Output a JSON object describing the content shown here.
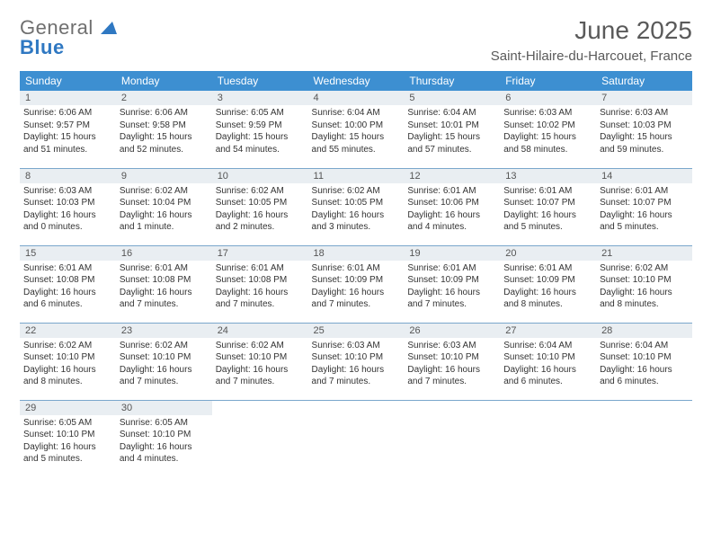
{
  "logo": {
    "word1": "General",
    "word2": "Blue"
  },
  "title": "June 2025",
  "location": "Saint-Hilaire-du-Harcouet, France",
  "header_bg": "#3d8fd1",
  "daynum_bg": "#e9eef2",
  "rule_color": "#7aa7cc",
  "weekdays": [
    "Sunday",
    "Monday",
    "Tuesday",
    "Wednesday",
    "Thursday",
    "Friday",
    "Saturday"
  ],
  "days": [
    {
      "n": "1",
      "sr": "6:06 AM",
      "ss": "9:57 PM",
      "dl": "15 hours and 51 minutes."
    },
    {
      "n": "2",
      "sr": "6:06 AM",
      "ss": "9:58 PM",
      "dl": "15 hours and 52 minutes."
    },
    {
      "n": "3",
      "sr": "6:05 AM",
      "ss": "9:59 PM",
      "dl": "15 hours and 54 minutes."
    },
    {
      "n": "4",
      "sr": "6:04 AM",
      "ss": "10:00 PM",
      "dl": "15 hours and 55 minutes."
    },
    {
      "n": "5",
      "sr": "6:04 AM",
      "ss": "10:01 PM",
      "dl": "15 hours and 57 minutes."
    },
    {
      "n": "6",
      "sr": "6:03 AM",
      "ss": "10:02 PM",
      "dl": "15 hours and 58 minutes."
    },
    {
      "n": "7",
      "sr": "6:03 AM",
      "ss": "10:03 PM",
      "dl": "15 hours and 59 minutes."
    },
    {
      "n": "8",
      "sr": "6:03 AM",
      "ss": "10:03 PM",
      "dl": "16 hours and 0 minutes."
    },
    {
      "n": "9",
      "sr": "6:02 AM",
      "ss": "10:04 PM",
      "dl": "16 hours and 1 minute."
    },
    {
      "n": "10",
      "sr": "6:02 AM",
      "ss": "10:05 PM",
      "dl": "16 hours and 2 minutes."
    },
    {
      "n": "11",
      "sr": "6:02 AM",
      "ss": "10:05 PM",
      "dl": "16 hours and 3 minutes."
    },
    {
      "n": "12",
      "sr": "6:01 AM",
      "ss": "10:06 PM",
      "dl": "16 hours and 4 minutes."
    },
    {
      "n": "13",
      "sr": "6:01 AM",
      "ss": "10:07 PM",
      "dl": "16 hours and 5 minutes."
    },
    {
      "n": "14",
      "sr": "6:01 AM",
      "ss": "10:07 PM",
      "dl": "16 hours and 5 minutes."
    },
    {
      "n": "15",
      "sr": "6:01 AM",
      "ss": "10:08 PM",
      "dl": "16 hours and 6 minutes."
    },
    {
      "n": "16",
      "sr": "6:01 AM",
      "ss": "10:08 PM",
      "dl": "16 hours and 7 minutes."
    },
    {
      "n": "17",
      "sr": "6:01 AM",
      "ss": "10:08 PM",
      "dl": "16 hours and 7 minutes."
    },
    {
      "n": "18",
      "sr": "6:01 AM",
      "ss": "10:09 PM",
      "dl": "16 hours and 7 minutes."
    },
    {
      "n": "19",
      "sr": "6:01 AM",
      "ss": "10:09 PM",
      "dl": "16 hours and 7 minutes."
    },
    {
      "n": "20",
      "sr": "6:01 AM",
      "ss": "10:09 PM",
      "dl": "16 hours and 8 minutes."
    },
    {
      "n": "21",
      "sr": "6:02 AM",
      "ss": "10:10 PM",
      "dl": "16 hours and 8 minutes."
    },
    {
      "n": "22",
      "sr": "6:02 AM",
      "ss": "10:10 PM",
      "dl": "16 hours and 8 minutes."
    },
    {
      "n": "23",
      "sr": "6:02 AM",
      "ss": "10:10 PM",
      "dl": "16 hours and 7 minutes."
    },
    {
      "n": "24",
      "sr": "6:02 AM",
      "ss": "10:10 PM",
      "dl": "16 hours and 7 minutes."
    },
    {
      "n": "25",
      "sr": "6:03 AM",
      "ss": "10:10 PM",
      "dl": "16 hours and 7 minutes."
    },
    {
      "n": "26",
      "sr": "6:03 AM",
      "ss": "10:10 PM",
      "dl": "16 hours and 7 minutes."
    },
    {
      "n": "27",
      "sr": "6:04 AM",
      "ss": "10:10 PM",
      "dl": "16 hours and 6 minutes."
    },
    {
      "n": "28",
      "sr": "6:04 AM",
      "ss": "10:10 PM",
      "dl": "16 hours and 6 minutes."
    },
    {
      "n": "29",
      "sr": "6:05 AM",
      "ss": "10:10 PM",
      "dl": "16 hours and 5 minutes."
    },
    {
      "n": "30",
      "sr": "6:05 AM",
      "ss": "10:10 PM",
      "dl": "16 hours and 4 minutes."
    }
  ],
  "labels": {
    "sunrise": "Sunrise:",
    "sunset": "Sunset:",
    "daylight": "Daylight:"
  }
}
